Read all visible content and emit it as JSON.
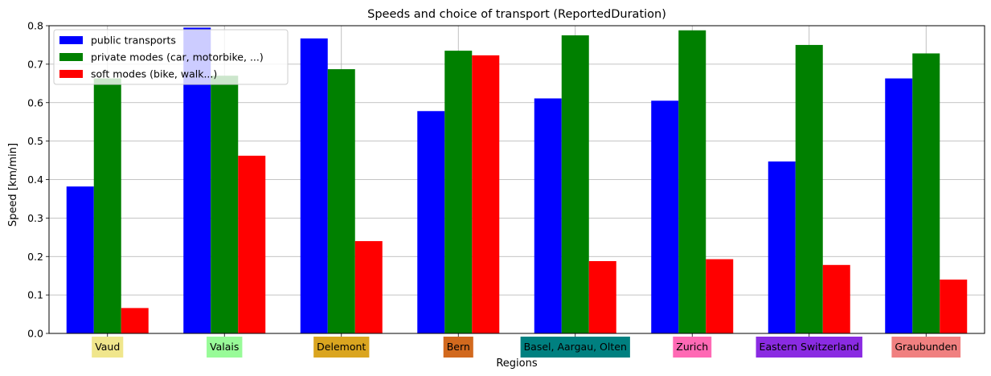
{
  "chart_data": {
    "type": "bar",
    "title": "Speeds and choice of transport (ReportedDuration)",
    "xlabel": "Regions",
    "ylabel": "Speed [km/min]",
    "ylim": [
      0,
      0.8
    ],
    "yticks": [
      "0.0",
      "0.1",
      "0.2",
      "0.3",
      "0.4",
      "0.5",
      "0.6",
      "0.7",
      "0.8"
    ],
    "grid": true,
    "legend_position": "top-left",
    "categories": [
      "Vaud",
      "Valais",
      "Delemont",
      "Bern",
      "Basel, Aargau, Olten",
      "Zurich",
      "Eastern Switzerland",
      "Graubunden"
    ],
    "category_colors": [
      "#f0e68c",
      "#98fb98",
      "#daa520",
      "#d2691e",
      "#008080",
      "#ff69b4",
      "#8a2be2",
      "#f08080"
    ],
    "series": [
      {
        "name": "public transports",
        "color": "#0000ff",
        "values": [
          0.382,
          0.795,
          0.767,
          0.578,
          0.611,
          0.605,
          0.447,
          0.663
        ]
      },
      {
        "name": "private modes (car, motorbike, ...)",
        "color": "#008000",
        "values": [
          0.663,
          0.67,
          0.687,
          0.735,
          0.775,
          0.788,
          0.75,
          0.728
        ]
      },
      {
        "name": "soft modes (bike, walk...)",
        "color": "#ff0000",
        "values": [
          0.066,
          0.462,
          0.24,
          0.723,
          0.188,
          0.193,
          0.178,
          0.14
        ]
      }
    ]
  }
}
